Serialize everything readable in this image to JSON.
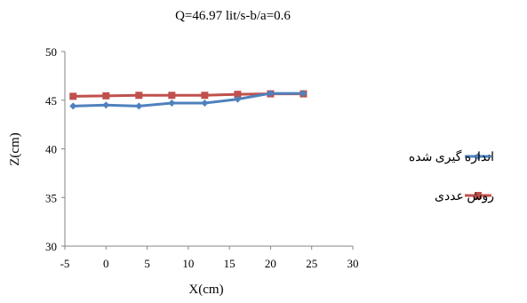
{
  "chart_data": {
    "type": "line",
    "title": "Q=46.97 lit/s-b/a=0.6",
    "xlabel": "X(cm)",
    "ylabel": "Z(cm)",
    "xlim": [
      -5,
      30
    ],
    "ylim": [
      30,
      50
    ],
    "xticks": [
      "-5",
      "0",
      "5",
      "10",
      "15",
      "20",
      "25",
      "30"
    ],
    "yticks": [
      "30",
      "35",
      "40",
      "45",
      "50"
    ],
    "grid": false,
    "legend_position": "right",
    "series": [
      {
        "name": "اندازه گیری شده",
        "color": "#4f81bd",
        "marker": "diamond",
        "x": [
          -4,
          0,
          4,
          8,
          12,
          16,
          20,
          24
        ],
        "y": [
          44.4,
          44.5,
          44.4,
          44.7,
          44.7,
          45.1,
          45.7,
          45.7
        ]
      },
      {
        "name": "روش عددی",
        "color": "#c0504d",
        "marker": "square",
        "x": [
          -4,
          0,
          4,
          8,
          12,
          16,
          20,
          24
        ],
        "y": [
          45.4,
          45.45,
          45.5,
          45.5,
          45.5,
          45.6,
          45.65,
          45.65
        ]
      }
    ]
  }
}
